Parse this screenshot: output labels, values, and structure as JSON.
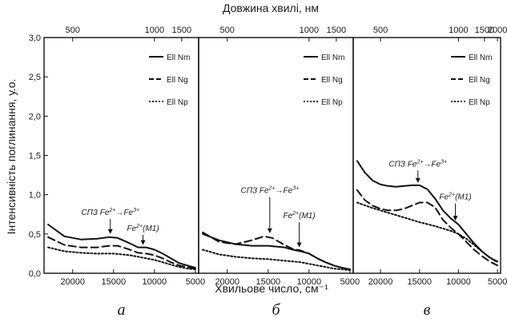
{
  "chart_data": {
    "type": "line",
    "top_axis_label": "Довжина хвилі, нм",
    "xlabel": "Хвильове число, см⁻¹",
    "ylabel": "Інтенсивність поглинання, у.о.",
    "ylim": [
      0,
      3.0
    ],
    "y_ticks": [
      "0,0",
      "0,5",
      "1,0",
      "1,5",
      "2,0",
      "2,5",
      "3,0"
    ],
    "panels": [
      {
        "letter": "а",
        "x_ticks": [
          "20000",
          "15000",
          "10000",
          "5000"
        ],
        "top_ticks": [
          "500",
          "1000",
          "1500"
        ],
        "legend": [
          "Ell Nm",
          "Ell Ng",
          "Ell Np"
        ],
        "series": [
          {
            "name": "Ell Nm",
            "style": "solid",
            "x": [
              23000,
              21000,
              19000,
              17000,
              15500,
              14500,
              13000,
              12000,
              11000,
              10000,
              9000,
              8000,
              7000,
              6000,
              5000
            ],
            "y": [
              0.62,
              0.47,
              0.43,
              0.44,
              0.46,
              0.45,
              0.38,
              0.33,
              0.33,
              0.3,
              0.25,
              0.19,
              0.13,
              0.1,
              0.07
            ]
          },
          {
            "name": "Ell Ng",
            "style": "dashed",
            "x": [
              23000,
              21000,
              19000,
              17000,
              15500,
              14500,
              13000,
              12000,
              11000,
              10000,
              9000,
              8000,
              7000,
              6000,
              5000
            ],
            "y": [
              0.46,
              0.36,
              0.33,
              0.33,
              0.35,
              0.35,
              0.3,
              0.26,
              0.25,
              0.23,
              0.19,
              0.14,
              0.1,
              0.08,
              0.06
            ]
          },
          {
            "name": "Ell Np",
            "style": "dotted",
            "x": [
              23000,
              21000,
              19000,
              17000,
              15000,
              13000,
              11000,
              10000,
              9000,
              8000,
              7000,
              6000,
              5000
            ],
            "y": [
              0.33,
              0.28,
              0.26,
              0.25,
              0.25,
              0.23,
              0.19,
              0.17,
              0.14,
              0.11,
              0.08,
              0.06,
              0.05
            ]
          }
        ],
        "annotations": [
          {
            "pre": "СПЗ Fe",
            "sup1": "2+",
            "mid": "→Fe",
            "sup2": "3+",
            "post": "",
            "x": 15400,
            "y_text": 0.74,
            "y_arrow": 0.49
          },
          {
            "pre": "Fe",
            "sup1": "2+",
            "mid": "(M1)",
            "sup2": "",
            "post": "",
            "x": 11400,
            "y_text": 0.54,
            "y_arrow": 0.35
          }
        ]
      },
      {
        "letter": "б",
        "x_ticks": [
          "20000",
          "15000",
          "10000",
          "5000"
        ],
        "top_ticks": [
          "500",
          "1000",
          "1500"
        ],
        "legend": [
          "Ell Nm",
          "Ell Ng",
          "Ell Np"
        ],
        "series": [
          {
            "name": "Ell Nm",
            "style": "solid",
            "x": [
              23000,
              21000,
              19000,
              17000,
              15000,
              13000,
              12000,
              11000,
              10000,
              9000,
              8000,
              7000,
              6000,
              5000
            ],
            "y": [
              0.5,
              0.42,
              0.37,
              0.35,
              0.35,
              0.33,
              0.3,
              0.28,
              0.25,
              0.19,
              0.14,
              0.1,
              0.07,
              0.05
            ]
          },
          {
            "name": "Ell Ng",
            "style": "dashed",
            "x": [
              23000,
              21000,
              19000,
              17000,
              15500,
              14500,
              13000,
              12000,
              11000,
              10000,
              9000,
              8000,
              7000,
              6000,
              5000
            ],
            "y": [
              0.52,
              0.4,
              0.37,
              0.42,
              0.47,
              0.45,
              0.36,
              0.31,
              0.29,
              0.25,
              0.19,
              0.14,
              0.1,
              0.07,
              0.05
            ]
          },
          {
            "name": "Ell Np",
            "style": "dotted",
            "x": [
              23000,
              21000,
              19000,
              17000,
              15000,
              13000,
              11000,
              10000,
              9000,
              8000,
              7000,
              6000,
              5000
            ],
            "y": [
              0.3,
              0.24,
              0.21,
              0.19,
              0.18,
              0.16,
              0.14,
              0.12,
              0.1,
              0.08,
              0.06,
              0.05,
              0.04
            ]
          }
        ],
        "annotations": [
          {
            "pre": "СПЗ Fe",
            "sup1": "2+",
            "mid": "→Fe",
            "sup2": "3+",
            "post": "",
            "x": 14800,
            "y_text": 1.02,
            "y_arrow": 0.5
          },
          {
            "pre": "Fe",
            "sup1": "2+",
            "mid": "(M1)",
            "sup2": "",
            "post": "",
            "x": 11200,
            "y_text": 0.7,
            "y_arrow": 0.32
          }
        ]
      },
      {
        "letter": "в",
        "x_ticks": [
          "20000",
          "15000",
          "10000",
          "5000"
        ],
        "top_ticks": [
          "500",
          "1000",
          "1500",
          "2000"
        ],
        "legend": [
          "Ell Nm",
          "Ell Ng",
          "Ell Np"
        ],
        "series": [
          {
            "name": "Ell Nm",
            "style": "solid",
            "x": [
              23000,
              22000,
              21000,
              20000,
              19000,
              18000,
              17000,
              16000,
              15000,
              14000,
              13000,
              12000,
              11000,
              10000,
              9000,
              8000,
              7000,
              6000,
              5000
            ],
            "y": [
              1.43,
              1.28,
              1.18,
              1.13,
              1.11,
              1.1,
              1.11,
              1.12,
              1.12,
              1.07,
              0.95,
              0.8,
              0.7,
              0.62,
              0.5,
              0.38,
              0.28,
              0.2,
              0.15
            ]
          },
          {
            "name": "Ell Ng",
            "style": "dashed",
            "x": [
              23000,
              22000,
              21000,
              20000,
              19000,
              18000,
              17000,
              16000,
              15000,
              14000,
              13000,
              12000,
              11000,
              10000,
              9000,
              8000,
              7000,
              6000,
              5000
            ],
            "y": [
              1.06,
              0.93,
              0.86,
              0.82,
              0.8,
              0.8,
              0.82,
              0.86,
              0.9,
              0.9,
              0.84,
              0.68,
              0.58,
              0.5,
              0.4,
              0.3,
              0.22,
              0.15,
              0.1
            ]
          },
          {
            "name": "Ell Np",
            "style": "dotted",
            "x": [
              23000,
              21000,
              19000,
              17000,
              15000,
              13000,
              11000,
              10000,
              9000,
              8000,
              7000,
              6000,
              5000
            ],
            "y": [
              0.9,
              0.83,
              0.77,
              0.71,
              0.65,
              0.6,
              0.54,
              0.5,
              0.44,
              0.36,
              0.28,
              0.2,
              0.14
            ]
          }
        ],
        "annotations": [
          {
            "pre": "СПЗ Fe",
            "sup1": "2+",
            "mid": "→Fe",
            "sup2": "3+",
            "post": "",
            "x": 15200,
            "y_text": 1.36,
            "y_arrow": 1.14
          },
          {
            "pre": "Fe",
            "sup1": "2+",
            "mid": "(M1)",
            "sup2": "",
            "post": "",
            "x": 10400,
            "y_text": 0.94,
            "y_arrow": 0.66
          }
        ]
      }
    ]
  }
}
